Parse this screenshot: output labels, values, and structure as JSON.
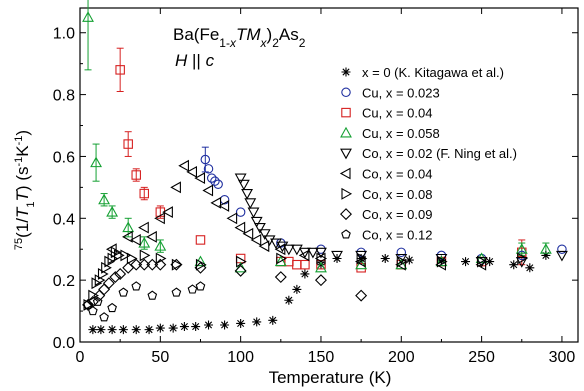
{
  "chart_data": {
    "type": "scatter",
    "xlabel": "Temperature (K)",
    "ylabel": "⁷⁵(1/T₁T) (s⁻¹K⁻¹)",
    "xlim": [
      0,
      310
    ],
    "ylim": [
      0,
      1.08
    ],
    "x_ticks": [
      "0",
      "50",
      "100",
      "150",
      "200",
      "250",
      "300"
    ],
    "y_ticks": [
      "0.0",
      "0.2",
      "0.4",
      "0.6",
      "0.8",
      "1.0"
    ],
    "x_tick_values": [
      0,
      50,
      100,
      150,
      200,
      250,
      300
    ],
    "y_tick_values": [
      0,
      0.2,
      0.4,
      0.6,
      0.8,
      1.0
    ],
    "compound": "Ba(Fe1-xTMx)2As2",
    "field": "H || c",
    "legend_placement": "right",
    "series": [
      {
        "name": "x = 0 (K. Kitagawa et al.)",
        "marker": "star",
        "color": "#000000",
        "x": [
          8,
          13,
          20,
          27,
          35,
          43,
          50,
          58,
          65,
          72,
          80,
          90,
          100,
          110,
          120,
          130,
          135,
          140,
          150,
          160,
          175,
          190,
          205,
          225,
          240,
          255,
          270,
          280,
          290
        ],
        "y": [
          0.04,
          0.04,
          0.04,
          0.04,
          0.04,
          0.04,
          0.045,
          0.045,
          0.05,
          0.05,
          0.055,
          0.055,
          0.06,
          0.065,
          0.07,
          0.135,
          0.17,
          0.22,
          0.25,
          0.27,
          0.27,
          0.27,
          0.265,
          0.265,
          0.26,
          0.26,
          0.25,
          0.24,
          0.28
        ]
      },
      {
        "name": "Cu, x = 0.023",
        "marker": "circle",
        "color": "#1f2fa0",
        "x": [
          78,
          80,
          82,
          84,
          86,
          90,
          100,
          125,
          150,
          175,
          200,
          225,
          250,
          275,
          300
        ],
        "y": [
          0.59,
          0.56,
          0.53,
          0.52,
          0.51,
          0.46,
          0.42,
          0.32,
          0.3,
          0.29,
          0.29,
          0.28,
          0.27,
          0.28,
          0.3
        ],
        "err": [
          0.04,
          0,
          0,
          0,
          0,
          0,
          0,
          0,
          0,
          0,
          0,
          0,
          0,
          0,
          0
        ]
      },
      {
        "name": "Cu, x = 0.04",
        "marker": "square",
        "color": "#d62020",
        "x": [
          25,
          30,
          35,
          40,
          50,
          75,
          100,
          125,
          130,
          135,
          140,
          150,
          175,
          200,
          225,
          250,
          275
        ],
        "y": [
          0.88,
          0.64,
          0.54,
          0.48,
          0.42,
          0.33,
          0.27,
          0.26,
          0.26,
          0.25,
          0.25,
          0.25,
          0.24,
          0.25,
          0.26,
          0.26,
          0.29
        ],
        "err": [
          0.07,
          0.04,
          0.02,
          0.02,
          0.02,
          0,
          0,
          0,
          0,
          0,
          0,
          0,
          0,
          0,
          0,
          0,
          0.04
        ]
      },
      {
        "name": "Cu, x = 0.058",
        "marker": "triangle-up",
        "color": "#14a032",
        "x": [
          5,
          10,
          15,
          20,
          30,
          40,
          50,
          75,
          100,
          125,
          150,
          175,
          200,
          225,
          250,
          275,
          290
        ],
        "y": [
          1.05,
          0.58,
          0.46,
          0.42,
          0.37,
          0.32,
          0.31,
          0.26,
          0.24,
          0.26,
          0.24,
          0.25,
          0.25,
          0.26,
          0.27,
          0.3,
          0.3
        ],
        "err": [
          0.17,
          0.06,
          0.02,
          0.02,
          0.03,
          0.02,
          0.02,
          0,
          0,
          0,
          0,
          0,
          0,
          0,
          0,
          0.02,
          0.02
        ]
      },
      {
        "name": "Co, x = 0.02 (F. Ning et al.)",
        "marker": "triangle-down",
        "color": "#000000",
        "x": [
          100,
          102,
          104,
          106,
          108,
          110,
          112,
          115,
          118,
          122,
          126,
          130,
          135,
          140,
          145,
          150,
          160,
          175,
          200,
          225,
          250,
          275,
          300
        ],
        "y": [
          0.53,
          0.51,
          0.48,
          0.45,
          0.42,
          0.39,
          0.37,
          0.35,
          0.33,
          0.32,
          0.31,
          0.3,
          0.3,
          0.29,
          0.29,
          0.29,
          0.28,
          0.28,
          0.27,
          0.27,
          0.26,
          0.26,
          0.28
        ]
      },
      {
        "name": "Co, x = 0.04",
        "marker": "triangle-left",
        "color": "#000000",
        "x": [
          20,
          30,
          35,
          40,
          45,
          50,
          55,
          60,
          65,
          70,
          75,
          80,
          85,
          90,
          95,
          100,
          105,
          110,
          115,
          125,
          140,
          150,
          175,
          200,
          225,
          250
        ],
        "y": [
          0.3,
          0.34,
          0.33,
          0.37,
          0.34,
          0.4,
          0.42,
          0.5,
          0.57,
          0.55,
          0.53,
          0.49,
          0.45,
          0.44,
          0.4,
          0.37,
          0.35,
          0.33,
          0.31,
          0.3,
          0.28,
          0.27,
          0.26,
          0.25,
          0.25,
          0.25
        ]
      },
      {
        "name": "Co, x = 0.08",
        "marker": "triangle-right",
        "color": "#000000",
        "x": [
          5,
          8,
          10,
          12,
          14,
          16,
          18,
          20,
          22,
          24,
          28,
          32,
          40,
          50,
          60,
          75,
          100,
          125,
          150,
          175,
          200,
          225,
          250,
          275
        ],
        "y": [
          0.12,
          0.15,
          0.19,
          0.2,
          0.22,
          0.24,
          0.26,
          0.27,
          0.29,
          0.28,
          0.28,
          0.27,
          0.28,
          0.27,
          0.25,
          0.25,
          0.26,
          0.27,
          0.27,
          0.27,
          0.26,
          0.26,
          0.26,
          0.27
        ]
      },
      {
        "name": "Co, x = 0.09",
        "marker": "diamond",
        "color": "#000000",
        "x": [
          5,
          8,
          12,
          15,
          18,
          22,
          25,
          30,
          35,
          40,
          45,
          50,
          60,
          75,
          100,
          125,
          150,
          175
        ],
        "y": [
          0.12,
          0.13,
          0.15,
          0.17,
          0.19,
          0.21,
          0.22,
          0.24,
          0.25,
          0.25,
          0.25,
          0.25,
          0.25,
          0.24,
          0.23,
          0.21,
          0.2,
          0.15
        ]
      },
      {
        "name": "Co, x = 0.12",
        "marker": "pentagon",
        "color": "#000000",
        "x": [
          5,
          8,
          11,
          15,
          20,
          27,
          35,
          45,
          60,
          70,
          75
        ],
        "y": [
          0.12,
          0.1,
          0.13,
          0.08,
          0.11,
          0.16,
          0.18,
          0.15,
          0.16,
          0.17,
          0.18
        ]
      }
    ]
  }
}
